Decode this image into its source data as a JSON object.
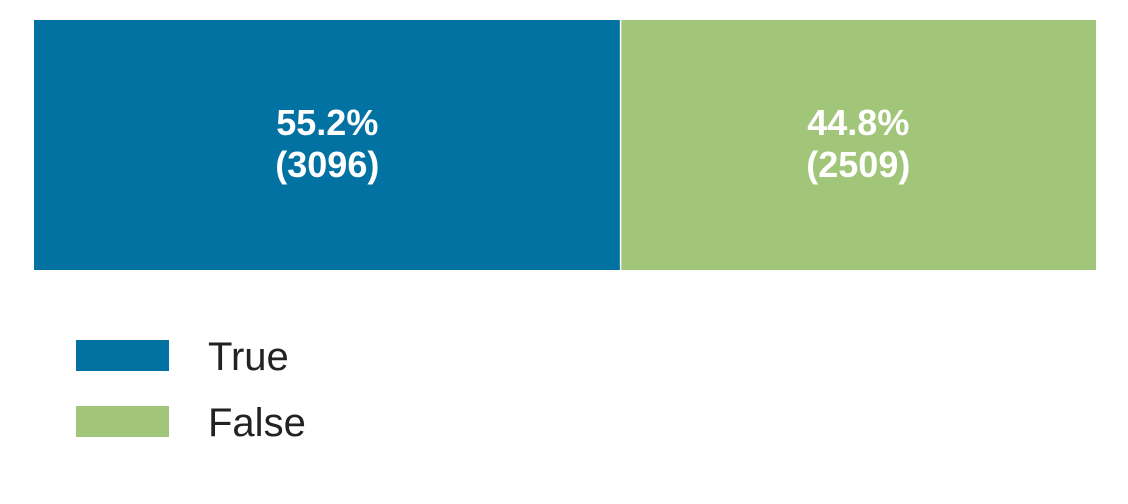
{
  "chart_data": {
    "type": "bar",
    "orientation": "horizontal-stacked-100",
    "categories": [
      "True",
      "False"
    ],
    "values": [
      3096,
      2509
    ],
    "percent_labels": [
      "55.2%",
      "44.8%"
    ],
    "count_labels": [
      "(3096)",
      "(2509)"
    ],
    "colors": [
      "#0272a2",
      "#a1c579"
    ],
    "legend": {
      "position": "bottom-left",
      "entries": [
        "True",
        "False"
      ]
    },
    "grid": false,
    "axes_visible": false
  }
}
